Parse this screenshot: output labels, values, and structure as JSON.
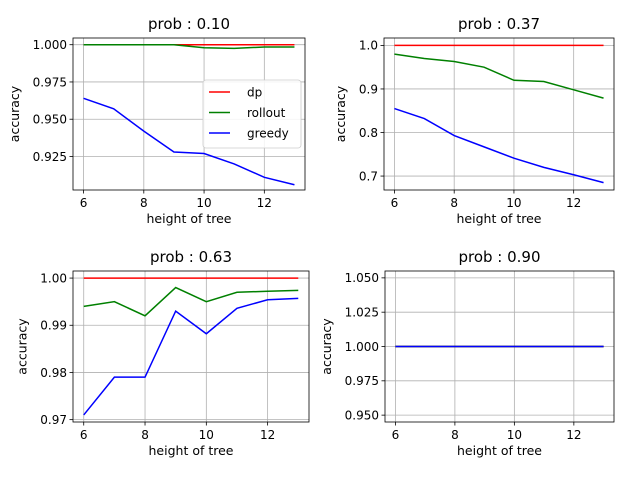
{
  "chart_data": [
    {
      "type": "line",
      "title": "prob : 0.10",
      "xlabel": "height of tree",
      "ylabel": "accuracy",
      "xlim": [
        5.65,
        13.35
      ],
      "ylim": [
        0.9025,
        1.0045
      ],
      "xticks": [
        6,
        8,
        10,
        12
      ],
      "yticks": [
        0.925,
        0.95,
        0.975,
        1.0
      ],
      "yticklabels": [
        "0.925",
        "0.950",
        "0.975",
        "1.000"
      ],
      "grid": true,
      "legend": "center-right",
      "x": [
        6,
        7,
        8,
        9,
        10,
        11,
        12,
        13
      ],
      "series": [
        {
          "name": "dp",
          "color": "#ff0000",
          "values": [
            1.0,
            1.0,
            1.0,
            1.0,
            1.0,
            1.0,
            1.0,
            1.0
          ]
        },
        {
          "name": "rollout",
          "color": "#008000",
          "values": [
            1.0,
            1.0,
            1.0,
            1.0,
            0.998,
            0.9975,
            0.9985,
            0.9985
          ]
        },
        {
          "name": "greedy",
          "color": "#0000ff",
          "values": [
            0.964,
            0.957,
            0.942,
            0.928,
            0.927,
            0.92,
            0.911,
            0.906
          ]
        }
      ]
    },
    {
      "type": "line",
      "title": "prob : 0.37",
      "xlabel": "height of tree",
      "ylabel": "accuracy",
      "xlim": [
        5.65,
        13.35
      ],
      "ylim": [
        0.668,
        1.017
      ],
      "xticks": [
        6,
        8,
        10,
        12
      ],
      "yticks": [
        0.7,
        0.8,
        0.9,
        1.0
      ],
      "yticklabels": [
        "0.7",
        "0.8",
        "0.9",
        "1.0"
      ],
      "grid": true,
      "x": [
        6,
        7,
        8,
        9,
        10,
        11,
        12,
        13
      ],
      "series": [
        {
          "color": "#ff0000",
          "values": [
            1.0,
            1.0,
            1.0,
            1.0,
            1.0,
            1.0,
            1.0,
            1.0
          ]
        },
        {
          "color": "#008000",
          "values": [
            0.98,
            0.97,
            0.963,
            0.95,
            0.92,
            0.917,
            0.898,
            0.879
          ]
        },
        {
          "color": "#0000ff",
          "values": [
            0.855,
            0.832,
            0.793,
            0.767,
            0.741,
            0.72,
            0.703,
            0.685
          ]
        }
      ]
    },
    {
      "type": "line",
      "title": "prob : 0.63",
      "xlabel": "height of tree",
      "ylabel": "accuracy",
      "xlim": [
        5.65,
        13.35
      ],
      "ylim": [
        0.9695,
        1.0015
      ],
      "xticks": [
        6,
        8,
        10,
        12
      ],
      "yticks": [
        0.97,
        0.98,
        0.99,
        1.0
      ],
      "yticklabels": [
        "0.97",
        "0.98",
        "0.99",
        "1.00"
      ],
      "grid": true,
      "x": [
        6,
        7,
        8,
        9,
        10,
        11,
        12,
        13
      ],
      "series": [
        {
          "color": "#ff0000",
          "values": [
            1.0,
            1.0,
            1.0,
            1.0,
            1.0,
            1.0,
            1.0,
            1.0
          ]
        },
        {
          "color": "#008000",
          "values": [
            0.994,
            0.995,
            0.992,
            0.998,
            0.995,
            0.997,
            0.9972,
            0.9974
          ]
        },
        {
          "color": "#0000ff",
          "values": [
            0.971,
            0.979,
            0.979,
            0.993,
            0.9882,
            0.9936,
            0.9954,
            0.9957
          ]
        }
      ]
    },
    {
      "type": "line",
      "title": "prob : 0.90",
      "xlabel": "height of tree",
      "ylabel": "accuracy",
      "xlim": [
        5.65,
        13.35
      ],
      "ylim": [
        0.945,
        1.055
      ],
      "xticks": [
        6,
        8,
        10,
        12
      ],
      "yticks": [
        0.95,
        0.975,
        1.0,
        1.025,
        1.05
      ],
      "yticklabels": [
        "0.950",
        "0.975",
        "1.000",
        "1.025",
        "1.050"
      ],
      "grid": true,
      "x": [
        6,
        7,
        8,
        9,
        10,
        11,
        12,
        13
      ],
      "series": [
        {
          "color": "#ff0000",
          "values": [
            1.0,
            1.0,
            1.0,
            1.0,
            1.0,
            1.0,
            1.0,
            1.0
          ]
        },
        {
          "color": "#008000",
          "values": [
            1.0,
            1.0,
            1.0,
            1.0,
            1.0,
            1.0,
            1.0,
            1.0
          ]
        },
        {
          "color": "#0000ff",
          "values": [
            1.0,
            1.0,
            1.0,
            1.0,
            1.0,
            1.0,
            1.0,
            1.0
          ]
        }
      ]
    }
  ]
}
